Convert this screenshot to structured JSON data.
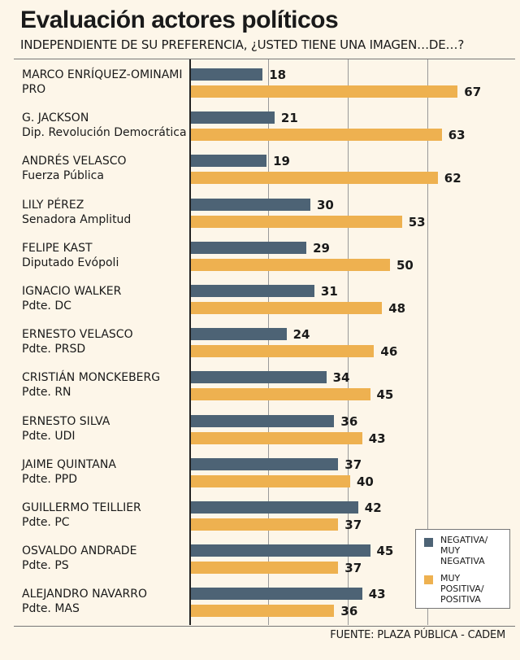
{
  "title": "Evaluación actores políticos",
  "subtitle": "INDEPENDIENTE DE SU PREFERENCIA, ¿USTED TIENE UNA IMAGEN…DE…?",
  "source": "FUENTE: PLAZA PÚBLICA - CADEM",
  "colors": {
    "negative": "#4d6375",
    "positive": "#eeb150"
  },
  "legend": {
    "negative": [
      "NEGATIVA/",
      "MUY",
      "NEGATIVA"
    ],
    "positive": [
      "MUY",
      "POSITIVA/",
      "POSITIVA"
    ]
  },
  "chart_data": {
    "type": "bar",
    "orientation": "horizontal",
    "xlim": [
      0,
      80
    ],
    "grid": true,
    "legend_position": "bottom-right",
    "categories": [
      {
        "name": "MARCO ENRÍQUEZ-OMINAMI",
        "role": "PRO"
      },
      {
        "name": "G. JACKSON",
        "role": "Dip. Revolución Democrática"
      },
      {
        "name": "ANDRÉS VELASCO",
        "role": "Fuerza Pública"
      },
      {
        "name": "LILY PÉREZ",
        "role": "Senadora Amplitud"
      },
      {
        "name": "FELIPE KAST",
        "role": "Diputado Evópoli"
      },
      {
        "name": "IGNACIO WALKER",
        "role": "Pdte. DC"
      },
      {
        "name": "ERNESTO VELASCO",
        "role": "Pdte. PRSD"
      },
      {
        "name": "CRISTIÁN MONCKEBERG",
        "role": "Pdte. RN"
      },
      {
        "name": "ERNESTO SILVA",
        "role": "Pdte. UDI"
      },
      {
        "name": "JAIME QUINTANA",
        "role": "Pdte. PPD"
      },
      {
        "name": "GUILLERMO TEILLIER",
        "role": "Pdte. PC"
      },
      {
        "name": "OSVALDO ANDRADE",
        "role": "Pdte. PS"
      },
      {
        "name": "ALEJANDRO NAVARRO",
        "role": "Pdte. MAS"
      }
    ],
    "series": [
      {
        "name": "NEGATIVA/ MUY NEGATIVA",
        "values": [
          18,
          21,
          19,
          30,
          29,
          31,
          24,
          34,
          36,
          37,
          42,
          45,
          43
        ]
      },
      {
        "name": "MUY POSITIVA/ POSITIVA",
        "values": [
          67,
          63,
          62,
          53,
          50,
          48,
          46,
          45,
          43,
          40,
          37,
          37,
          36
        ]
      }
    ]
  }
}
